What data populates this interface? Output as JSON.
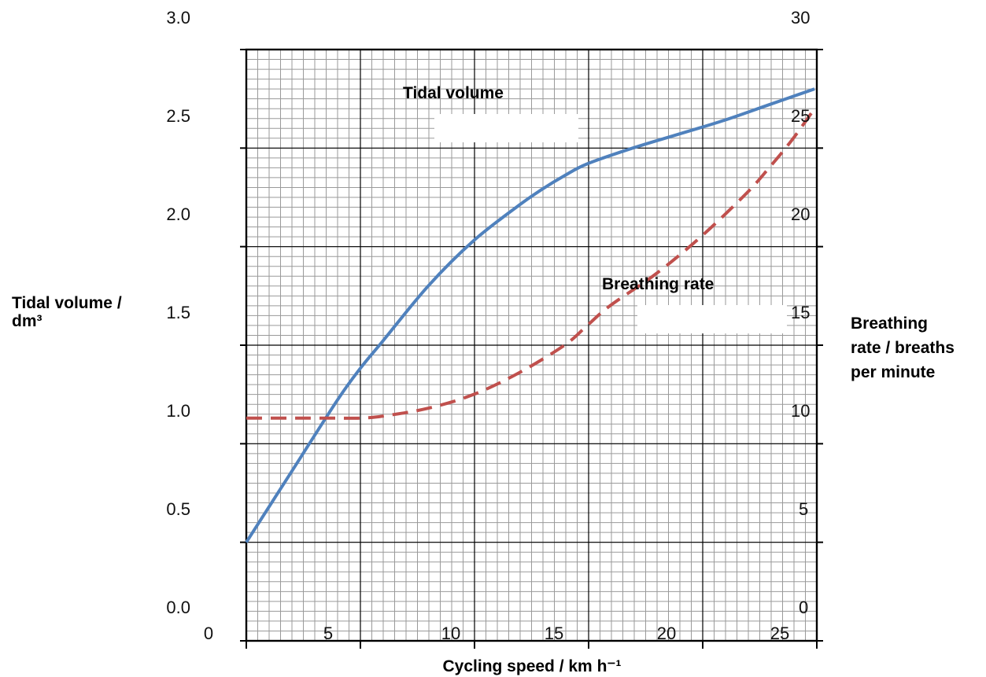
{
  "chart_data": {
    "type": "line",
    "title": "",
    "xlabel": "Cycling speed / km h⁻¹",
    "ylabel": [
      "Tidal volume /",
      "dm³"
    ],
    "y2label": [
      "Breathing",
      "rate / breaths",
      "per minute"
    ],
    "xlim": [
      0,
      25
    ],
    "ylim": [
      0.0,
      3.0
    ],
    "y2lim": [
      0,
      30
    ],
    "x_ticks": [
      "0",
      "5",
      "10",
      "15",
      "20",
      "25"
    ],
    "y_ticks": [
      "0.0",
      "0.5",
      "1.0",
      "1.5",
      "2.0",
      "2.5",
      "3.0"
    ],
    "y2_ticks": [
      "0",
      "5",
      "10",
      "15",
      "20",
      "25",
      "30"
    ],
    "grid": true,
    "series": [
      {
        "name": "Tidal volume",
        "axis": "left",
        "color": "#4f81bd",
        "style": "solid",
        "x": [
          0,
          2,
          4,
          5,
          6,
          8,
          10,
          12,
          13,
          14,
          15,
          17,
          19,
          21,
          23,
          25
        ],
        "y": [
          0.5,
          0.86,
          1.22,
          1.38,
          1.52,
          1.8,
          2.03,
          2.21,
          2.29,
          2.36,
          2.42,
          2.5,
          2.57,
          2.64,
          2.72,
          2.8
        ]
      },
      {
        "name": "Breathing rate",
        "axis": "right",
        "color": "#c0504d",
        "style": "dashed",
        "x": [
          0,
          2,
          3,
          4,
          5,
          6,
          8,
          10,
          12,
          14,
          15,
          16,
          18,
          20,
          22,
          23,
          24,
          25
        ],
        "y": [
          11.3,
          11.3,
          11.3,
          11.3,
          11.3,
          11.4,
          11.8,
          12.5,
          13.6,
          15.0,
          16.0,
          17.0,
          18.6,
          20.5,
          22.7,
          24.0,
          25.4,
          27.0
        ]
      }
    ],
    "annotations": [
      "Tidal volume",
      "Breathing rate"
    ]
  }
}
